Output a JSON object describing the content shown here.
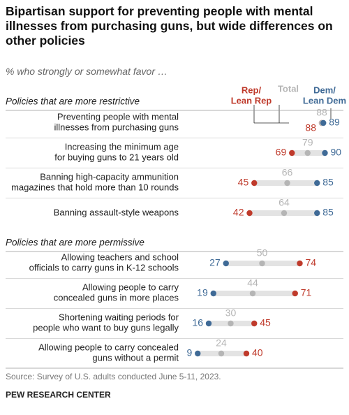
{
  "chart_data": {
    "type": "dot",
    "title": "Bipartisan support for preventing people with mental illnesses from purchasing guns, but wide differences on other policies",
    "subtitle": "% who strongly or somewhat favor …",
    "group_labels": [
      "Policies that are more restrictive",
      "Policies that are more permissive"
    ],
    "categories": [
      [
        "Preventing people with mental\nillnesses from purchasing guns",
        "Increasing the minimum age\nfor buying guns to 21 years old",
        "Banning high-capacity ammunition\nmagazines that hold more than 10 rounds",
        "Banning assault-style weapons"
      ],
      [
        "Allowing teachers and school\nofficials to carry guns in K-12 schools",
        "Allowing people to carry\nconcealed guns in more places",
        "Shortening waiting periods for\npeople who want to buy guns legally",
        "Allowing people to carry concealed\nguns without a permit"
      ]
    ],
    "series": [
      {
        "name": "Rep/\nLean Rep",
        "color": "#bf3a2b",
        "values": [
          [
            88,
            69,
            45,
            42
          ],
          [
            74,
            71,
            45,
            40
          ]
        ]
      },
      {
        "name": "Total",
        "color": "#b5b5b5",
        "values": [
          [
            88,
            79,
            66,
            64
          ],
          [
            50,
            44,
            30,
            24
          ]
        ]
      },
      {
        "name": "Dem/\nLean Dem",
        "color": "#3f6a96",
        "values": [
          [
            89,
            90,
            85,
            85
          ],
          [
            27,
            19,
            16,
            9
          ]
        ]
      }
    ],
    "xlim": [
      0,
      100
    ],
    "source": "Source: Survey of U.S. adults conducted June 5-11, 2023.",
    "credit": "PEW RESEARCH CENTER"
  }
}
